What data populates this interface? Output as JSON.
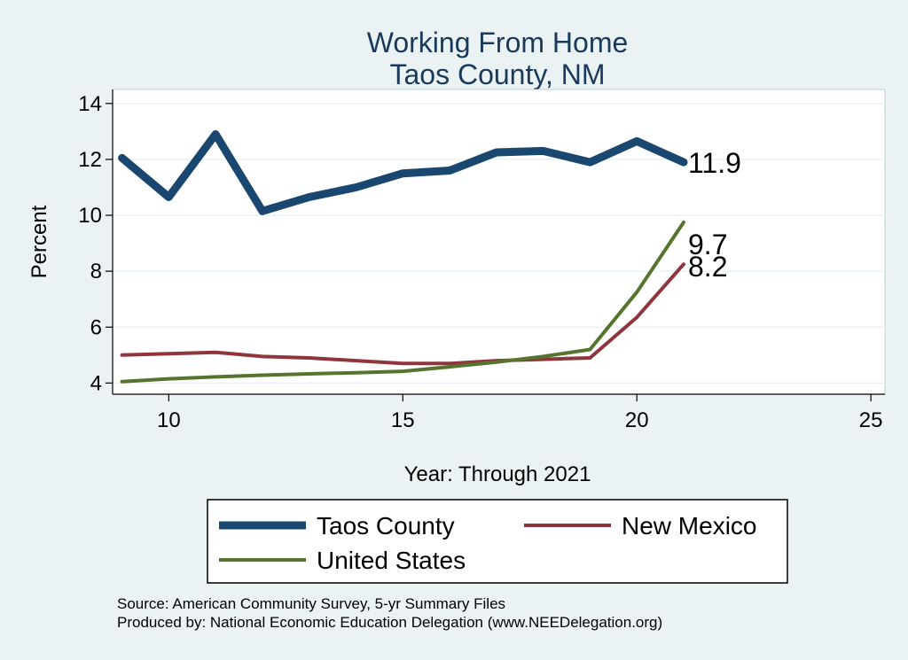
{
  "chart_data": {
    "type": "line",
    "title": "Working From Home",
    "subtitle": "Taos County, NM",
    "xlabel": "Year: Through 2021",
    "ylabel": "Percent",
    "xlim": [
      8.8,
      25.3
    ],
    "ylim": [
      3.6,
      14.5
    ],
    "xticks": [
      "10",
      "15",
      "20",
      "25"
    ],
    "yticks": [
      "4",
      "6",
      "8",
      "10",
      "12",
      "14"
    ],
    "x": [
      9,
      10,
      11,
      12,
      13,
      14,
      15,
      16,
      17,
      18,
      19,
      20,
      21
    ],
    "series": [
      {
        "name": "Taos County",
        "color": "#1a476f",
        "values": [
          12.05,
          10.65,
          12.9,
          10.15,
          10.65,
          11.0,
          11.5,
          11.6,
          12.25,
          12.3,
          11.9,
          12.65,
          11.9
        ],
        "end_label": "11.9"
      },
      {
        "name": "New Mexico",
        "color": "#90353b",
        "values": [
          5.0,
          5.05,
          5.1,
          4.95,
          4.9,
          4.8,
          4.7,
          4.7,
          4.8,
          4.85,
          4.9,
          6.35,
          8.25
        ],
        "end_label": "8.2"
      },
      {
        "name": "United States",
        "color": "#55752f",
        "values": [
          4.05,
          4.15,
          4.22,
          4.28,
          4.33,
          4.37,
          4.42,
          4.58,
          4.75,
          4.95,
          5.2,
          7.25,
          9.75
        ],
        "end_label": "9.7"
      }
    ],
    "grid": true,
    "legend_position": "bottom"
  },
  "notes": {
    "source": "Source: American Community Survey, 5-yr Summary Files",
    "produced": "Produced by: National Economic Education Delegation (www.NEEDelegation.org)"
  }
}
